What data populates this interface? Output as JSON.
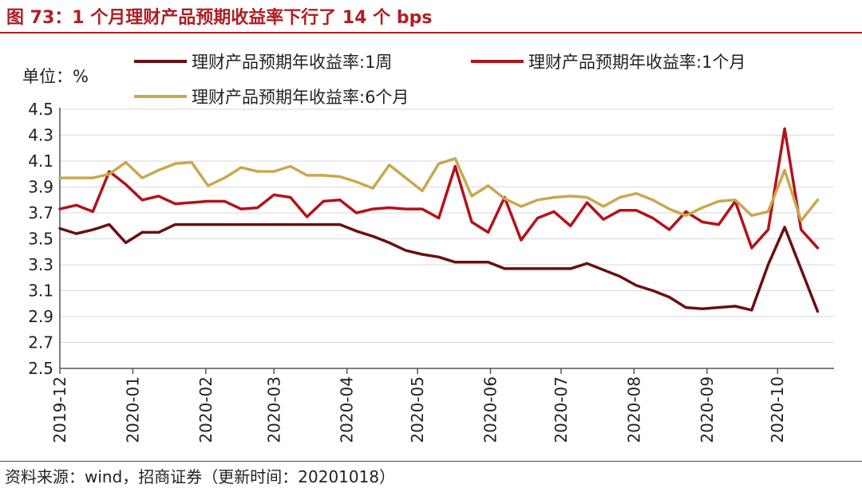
{
  "header": {
    "title": "图 73：1 个月理财产品预期收益率下行了 14 个 bps"
  },
  "unit": "单位：%",
  "source": "资料来源：wind，招商证券（更新时间：20201018）",
  "colors": {
    "accent": "#b01e23",
    "series_1w": "#6b0f12",
    "series_1m": "#b3121c",
    "series_6m": "#c9a84e"
  },
  "chart_data": {
    "type": "line",
    "ylim": [
      2.5,
      4.5
    ],
    "yticks": [
      "2.5",
      "2.7",
      "2.9",
      "3.1",
      "3.3",
      "3.5",
      "3.7",
      "3.9",
      "4.1",
      "4.3",
      "4.5"
    ],
    "x_tick_labels": [
      "2019-12",
      "2020-01",
      "2020-02",
      "2020-03",
      "2020-04",
      "2020-05",
      "2020-06",
      "2020-07",
      "2020-08",
      "2020-09",
      "2020-10"
    ],
    "grid": true,
    "legend": "top",
    "series": [
      {
        "name": "理财产品预期年收益率:1周",
        "points": [
          [
            "2019-12-01",
            3.58
          ],
          [
            "2019-12-08",
            3.54
          ],
          [
            "2019-12-15",
            3.57
          ],
          [
            "2019-12-22",
            3.61
          ],
          [
            "2019-12-29",
            3.47
          ],
          [
            "2020-01-05",
            3.55
          ],
          [
            "2020-01-12",
            3.55
          ],
          [
            "2020-01-19",
            3.61
          ],
          [
            "2020-01-26",
            3.61
          ],
          [
            "2020-02-02",
            3.61
          ],
          [
            "2020-02-09",
            3.61
          ],
          [
            "2020-02-16",
            3.61
          ],
          [
            "2020-02-23",
            3.61
          ],
          [
            "2020-03-01",
            3.61
          ],
          [
            "2020-03-08",
            3.61
          ],
          [
            "2020-03-15",
            3.61
          ],
          [
            "2020-03-22",
            3.61
          ],
          [
            "2020-03-29",
            3.61
          ],
          [
            "2020-04-05",
            3.56
          ],
          [
            "2020-04-12",
            3.52
          ],
          [
            "2020-04-19",
            3.47
          ],
          [
            "2020-04-26",
            3.41
          ],
          [
            "2020-05-03",
            3.38
          ],
          [
            "2020-05-10",
            3.36
          ],
          [
            "2020-05-17",
            3.32
          ],
          [
            "2020-05-24",
            3.32
          ],
          [
            "2020-05-31",
            3.32
          ],
          [
            "2020-06-07",
            3.27
          ],
          [
            "2020-06-14",
            3.27
          ],
          [
            "2020-06-21",
            3.27
          ],
          [
            "2020-06-28",
            3.27
          ],
          [
            "2020-07-05",
            3.27
          ],
          [
            "2020-07-12",
            3.31
          ],
          [
            "2020-07-19",
            3.26
          ],
          [
            "2020-07-26",
            3.21
          ],
          [
            "2020-08-02",
            3.14
          ],
          [
            "2020-08-09",
            3.1
          ],
          [
            "2020-08-16",
            3.05
          ],
          [
            "2020-08-23",
            2.97
          ],
          [
            "2020-08-30",
            2.96
          ],
          [
            "2020-09-06",
            2.97
          ],
          [
            "2020-09-13",
            2.98
          ],
          [
            "2020-09-20",
            2.95
          ],
          [
            "2020-09-27",
            3.3
          ],
          [
            "2020-10-04",
            3.59
          ],
          [
            "2020-10-18",
            2.94
          ]
        ]
      },
      {
        "name": "理财产品预期年收益率:1个月",
        "points": [
          [
            "2019-12-01",
            3.73
          ],
          [
            "2019-12-08",
            3.76
          ],
          [
            "2019-12-15",
            3.71
          ],
          [
            "2019-12-22",
            4.02
          ],
          [
            "2019-12-29",
            3.92
          ],
          [
            "2020-01-05",
            3.8
          ],
          [
            "2020-01-12",
            3.83
          ],
          [
            "2020-01-19",
            3.77
          ],
          [
            "2020-01-26",
            3.78
          ],
          [
            "2020-02-02",
            3.79
          ],
          [
            "2020-02-09",
            3.79
          ],
          [
            "2020-02-16",
            3.73
          ],
          [
            "2020-02-23",
            3.74
          ],
          [
            "2020-03-01",
            3.84
          ],
          [
            "2020-03-08",
            3.82
          ],
          [
            "2020-03-15",
            3.67
          ],
          [
            "2020-03-22",
            3.79
          ],
          [
            "2020-03-29",
            3.8
          ],
          [
            "2020-04-05",
            3.7
          ],
          [
            "2020-04-12",
            3.73
          ],
          [
            "2020-04-19",
            3.74
          ],
          [
            "2020-04-26",
            3.73
          ],
          [
            "2020-05-03",
            3.73
          ],
          [
            "2020-05-10",
            3.66
          ],
          [
            "2020-05-17",
            4.06
          ],
          [
            "2020-05-24",
            3.63
          ],
          [
            "2020-05-31",
            3.55
          ],
          [
            "2020-06-07",
            3.82
          ],
          [
            "2020-06-14",
            3.49
          ],
          [
            "2020-06-21",
            3.66
          ],
          [
            "2020-06-28",
            3.71
          ],
          [
            "2020-07-05",
            3.6
          ],
          [
            "2020-07-12",
            3.78
          ],
          [
            "2020-07-19",
            3.65
          ],
          [
            "2020-07-26",
            3.72
          ],
          [
            "2020-08-02",
            3.72
          ],
          [
            "2020-08-09",
            3.66
          ],
          [
            "2020-08-16",
            3.57
          ],
          [
            "2020-08-23",
            3.71
          ],
          [
            "2020-08-30",
            3.63
          ],
          [
            "2020-09-06",
            3.61
          ],
          [
            "2020-09-13",
            3.79
          ],
          [
            "2020-09-20",
            3.43
          ],
          [
            "2020-09-27",
            3.57
          ],
          [
            "2020-10-04",
            4.35
          ],
          [
            "2020-10-11",
            3.57
          ],
          [
            "2020-10-18",
            3.43
          ]
        ]
      },
      {
        "name": "理财产品预期年收益率:6个月",
        "points": [
          [
            "2019-12-01",
            3.97
          ],
          [
            "2019-12-08",
            3.97
          ],
          [
            "2019-12-15",
            3.97
          ],
          [
            "2019-12-22",
            4.0
          ],
          [
            "2019-12-29",
            4.09
          ],
          [
            "2020-01-05",
            3.97
          ],
          [
            "2020-01-12",
            4.03
          ],
          [
            "2020-01-19",
            4.08
          ],
          [
            "2020-01-26",
            4.09
          ],
          [
            "2020-02-02",
            3.91
          ],
          [
            "2020-02-09",
            3.97
          ],
          [
            "2020-02-16",
            4.05
          ],
          [
            "2020-02-23",
            4.02
          ],
          [
            "2020-03-01",
            4.02
          ],
          [
            "2020-03-08",
            4.06
          ],
          [
            "2020-03-15",
            3.99
          ],
          [
            "2020-03-22",
            3.99
          ],
          [
            "2020-03-29",
            3.98
          ],
          [
            "2020-04-05",
            3.94
          ],
          [
            "2020-04-12",
            3.89
          ],
          [
            "2020-04-19",
            4.07
          ],
          [
            "2020-04-26",
            3.97
          ],
          [
            "2020-05-03",
            3.87
          ],
          [
            "2020-05-10",
            4.08
          ],
          [
            "2020-05-17",
            4.12
          ],
          [
            "2020-05-24",
            3.83
          ],
          [
            "2020-05-31",
            3.91
          ],
          [
            "2020-06-07",
            3.81
          ],
          [
            "2020-06-14",
            3.75
          ],
          [
            "2020-06-21",
            3.8
          ],
          [
            "2020-06-28",
            3.82
          ],
          [
            "2020-07-05",
            3.83
          ],
          [
            "2020-07-12",
            3.82
          ],
          [
            "2020-07-19",
            3.75
          ],
          [
            "2020-07-26",
            3.82
          ],
          [
            "2020-08-02",
            3.85
          ],
          [
            "2020-08-09",
            3.8
          ],
          [
            "2020-08-16",
            3.73
          ],
          [
            "2020-08-23",
            3.68
          ],
          [
            "2020-08-30",
            3.74
          ],
          [
            "2020-09-06",
            3.79
          ],
          [
            "2020-09-13",
            3.8
          ],
          [
            "2020-09-20",
            3.68
          ],
          [
            "2020-09-27",
            3.71
          ],
          [
            "2020-10-04",
            4.03
          ],
          [
            "2020-10-11",
            3.64
          ],
          [
            "2020-10-18",
            3.8
          ]
        ]
      }
    ]
  }
}
